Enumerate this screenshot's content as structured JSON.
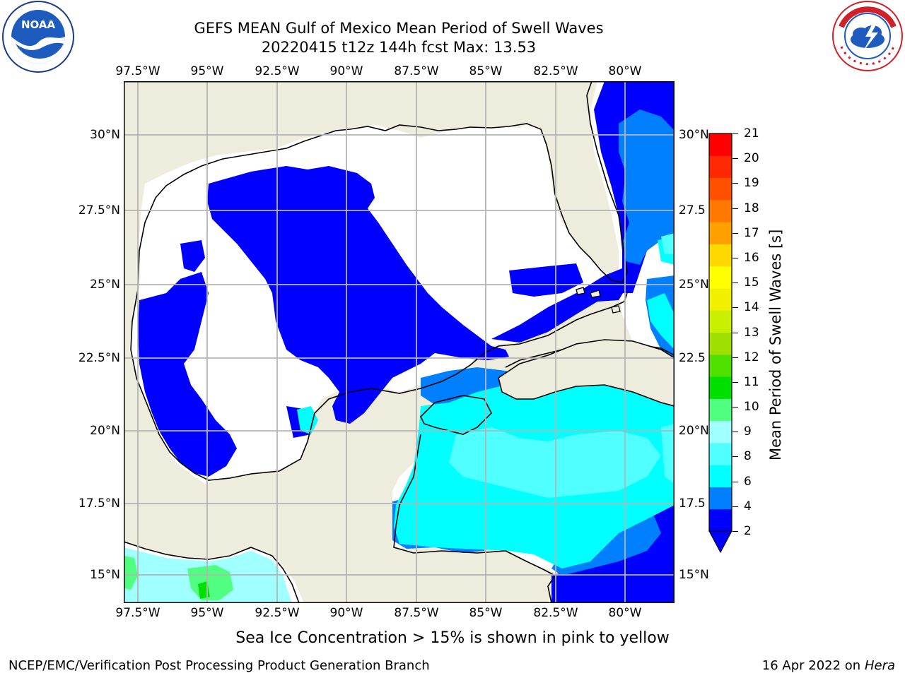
{
  "header": {
    "title_line1": "GEFS MEAN Gulf of Mexico Mean Period of Swell Waves",
    "title_line2": "20220415 t12z 144h fcst   Max: 13.53"
  },
  "logos": {
    "noaa": {
      "text": "NOAA",
      "ring_text": "NATIONAL OCEANIC AND ATMOSPHERIC ADMINISTRATION · U.S. DEPARTMENT OF COMMERCE"
    },
    "nws": {
      "ring_text": "NATIONAL WEATHER SERVICE"
    }
  },
  "map": {
    "lon_ticks": [
      "97.5°W",
      "95°W",
      "92.5°W",
      "90°W",
      "87.5°W",
      "85°W",
      "82.5°W",
      "80°W"
    ],
    "lat_ticks_left": [
      "30°N",
      "27.5°N",
      "25°N",
      "22.5°N",
      "20°N",
      "17.5°N",
      "15°N"
    ],
    "lat_ticks_right": [
      "30°N",
      "27.5",
      "25°N",
      "22.5",
      "20°N",
      "17.5",
      "15°N"
    ],
    "colors": {
      "land": "#eeecdc",
      "ocean_missing": "#ffffff",
      "grid": "#b4b4b4",
      "coast": "#000000"
    }
  },
  "colorbar": {
    "label": "Mean Period of Swell Waves [s]",
    "levels": [
      "21",
      "20",
      "19",
      "18",
      "17",
      "16",
      "15",
      "14",
      "13",
      "12",
      "11",
      "10",
      "9",
      "8",
      "6",
      "4",
      "2"
    ],
    "colors_bottom_to_top": [
      "#0000ff",
      "#0080ff",
      "#00ffff",
      "#50ffff",
      "#a0ffff",
      "#50ff80",
      "#00e000",
      "#50e000",
      "#a0e000",
      "#c8f000",
      "#f0f000",
      "#ffff00",
      "#ffd800",
      "#ffa000",
      "#ff7800",
      "#ff5000",
      "#ff2800",
      "#ff0000"
    ]
  },
  "bottom_note": "Sea Ice Concentration > 15% is shown in pink to yellow",
  "footer": {
    "left": "NCEP/EMC/Verification Post Processing Product Generation Branch",
    "right_prefix": "16 Apr 2022 on ",
    "right_host": "Hera"
  }
}
